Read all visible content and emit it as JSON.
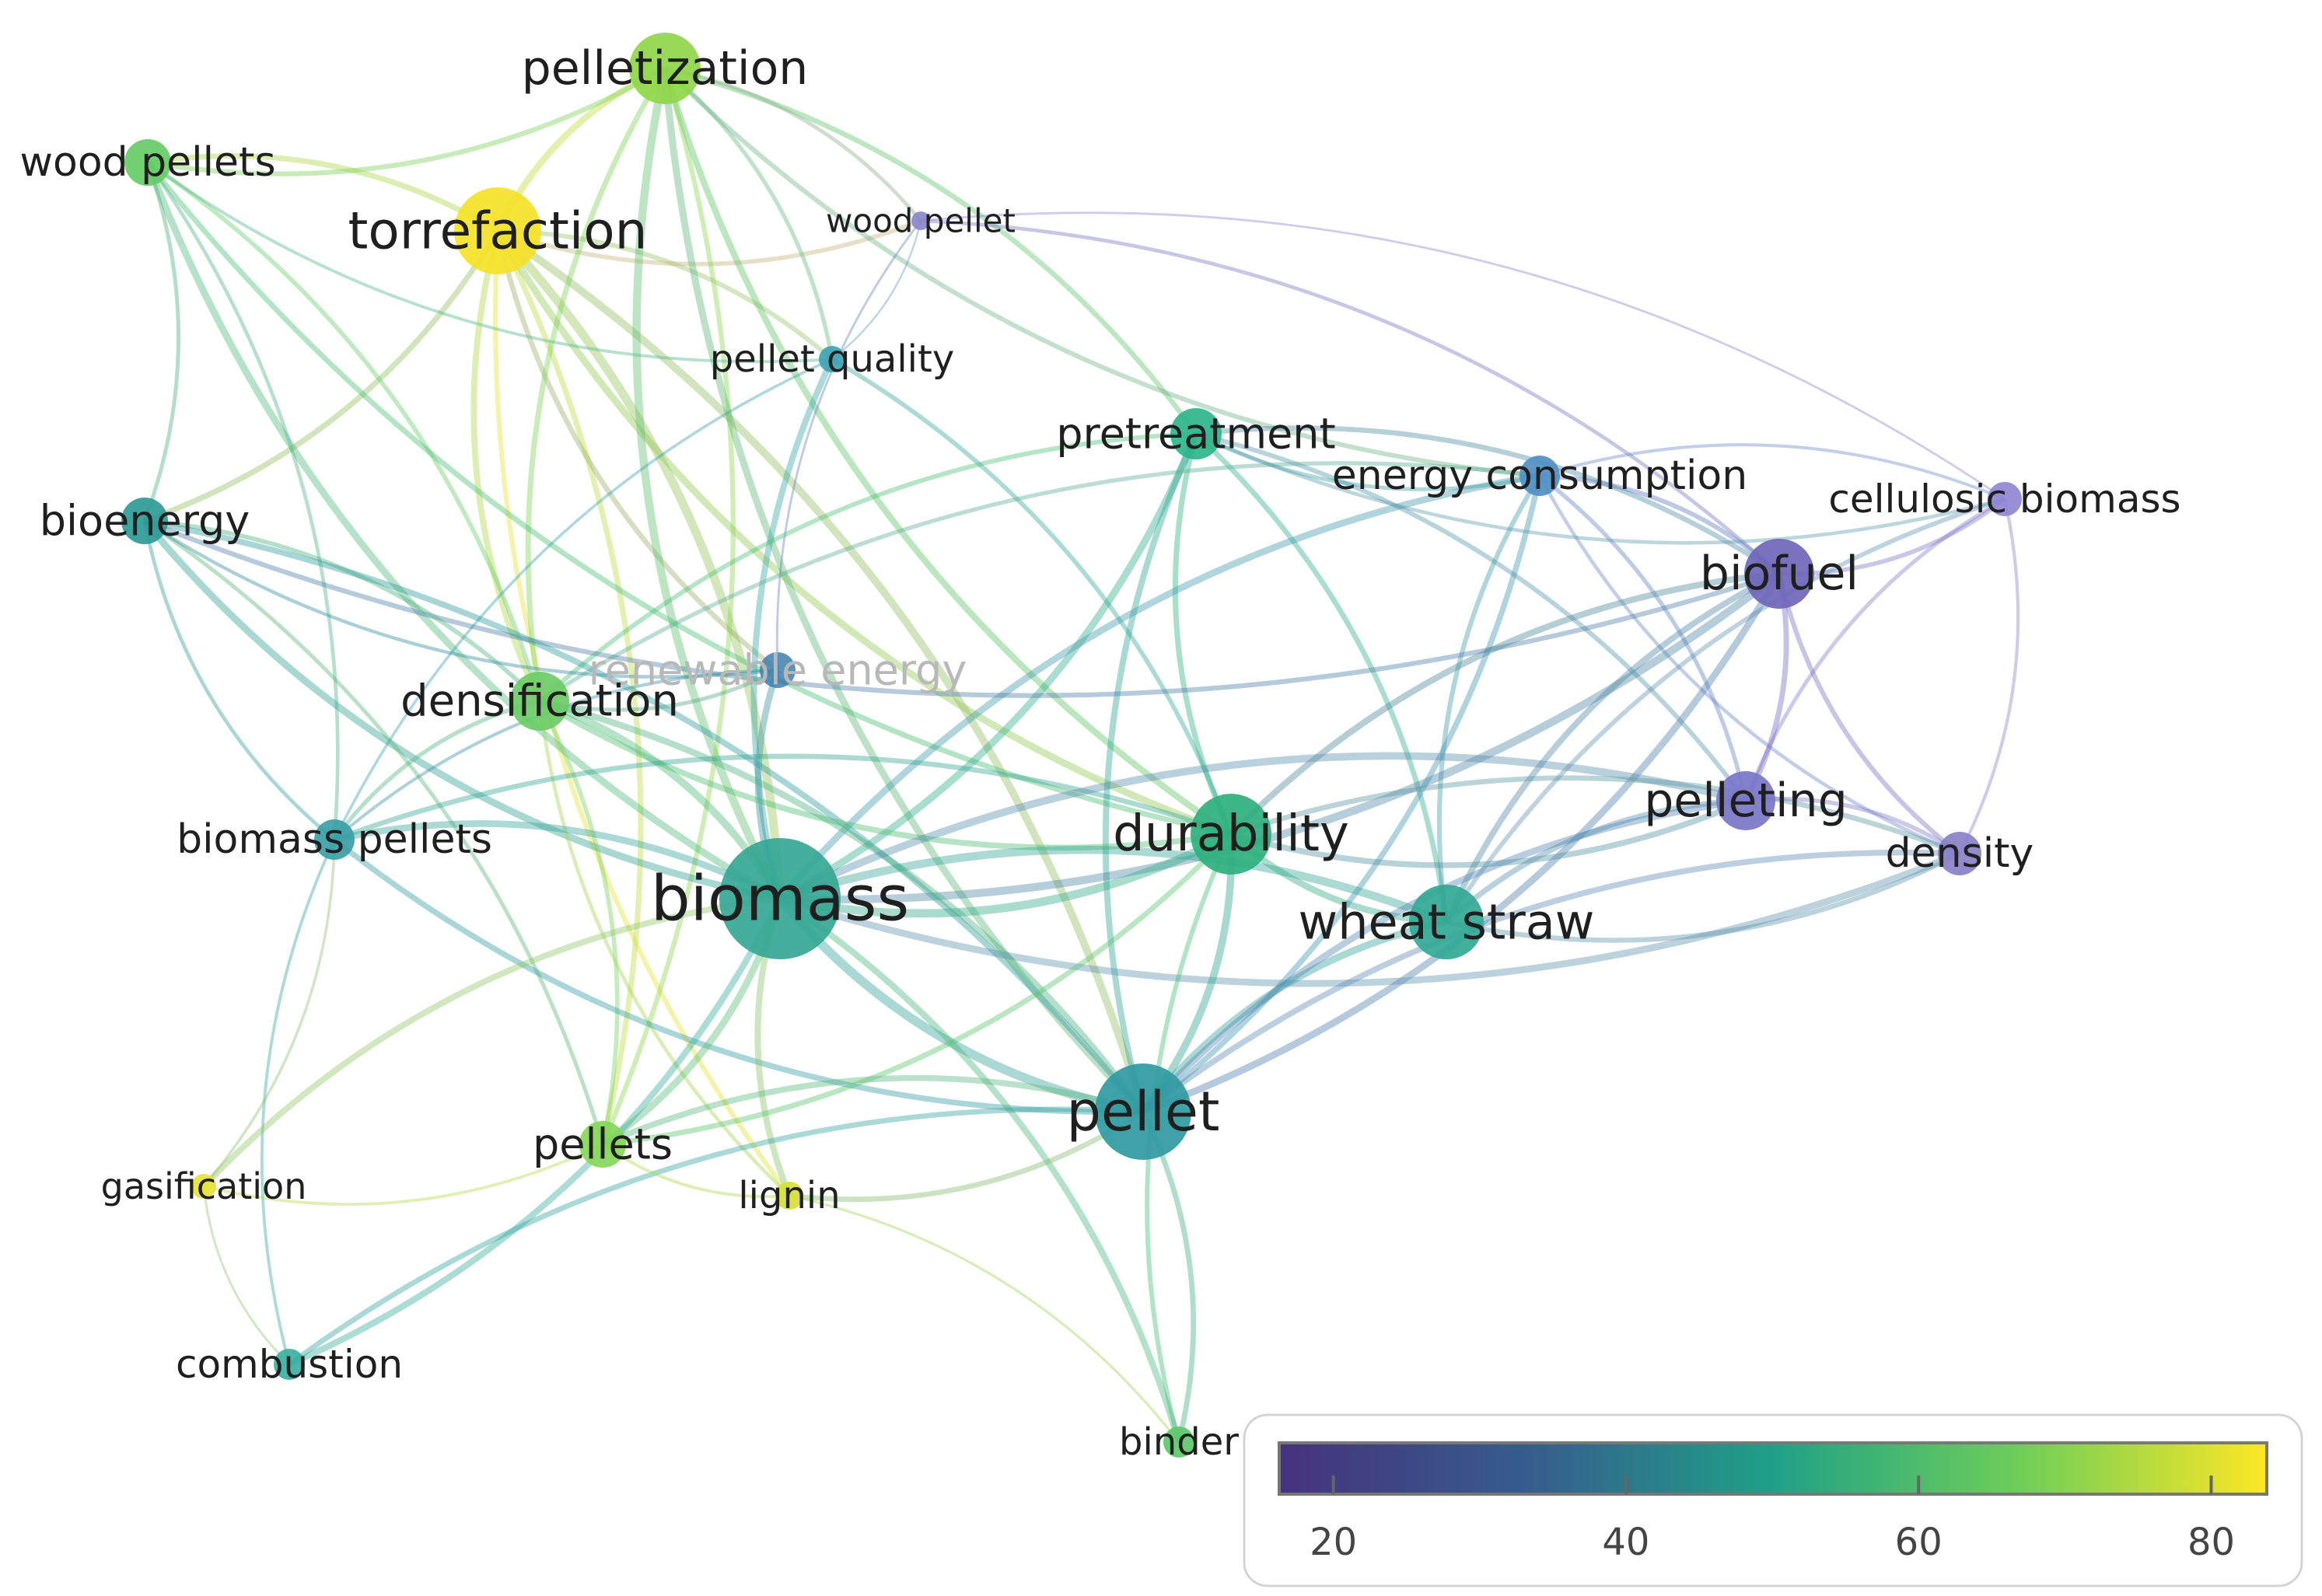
{
  "nodes": [
    {
      "id": "torrefaction",
      "label": "torrefaction",
      "color": "#f5e228",
      "faded": false
    },
    {
      "id": "pelletization",
      "label": "pelletization",
      "color": "#8fd64a",
      "faded": false
    },
    {
      "id": "wood-pellets",
      "label": "wood pellets",
      "color": "#66cc66",
      "faded": false
    },
    {
      "id": "wood-pellet",
      "label": "wood pellet",
      "color": "#8b86cc",
      "faded": false
    },
    {
      "id": "pellet-quality",
      "label": "pellet quality",
      "color": "#3ea3b3",
      "faded": false
    },
    {
      "id": "pretreatment",
      "label": "pretreatment",
      "color": "#2eb58a",
      "faded": false
    },
    {
      "id": "energy-consumption",
      "label": "energy consumption",
      "color": "#4f8fc4",
      "faded": false
    },
    {
      "id": "cellulosic-biomass",
      "label": "cellulosic biomass",
      "color": "#8f86d2",
      "faded": false
    },
    {
      "id": "biofuel",
      "label": "biofuel",
      "color": "#6f66b8",
      "faded": false
    },
    {
      "id": "bioenergy",
      "label": "bioenergy",
      "color": "#2e9a96",
      "faded": false
    },
    {
      "id": "renewable-energy",
      "label": "renewable energy",
      "color": "#3f7fae",
      "faded": true
    },
    {
      "id": "densification",
      "label": "densification",
      "color": "#6ccc66",
      "faded": false
    },
    {
      "id": "biomass-pellets",
      "label": "biomass pellets",
      "color": "#3aa0a6",
      "faded": false
    },
    {
      "id": "biomass",
      "label": "biomass",
      "color": "#35a794",
      "faded": false
    },
    {
      "id": "durability",
      "label": "durability",
      "color": "#2eb07e",
      "faded": false
    },
    {
      "id": "wheat-straw",
      "label": "wheat straw",
      "color": "#33a895",
      "faded": false
    },
    {
      "id": "pelleting",
      "label": "pelleting",
      "color": "#7a76c8",
      "faded": false
    },
    {
      "id": "density",
      "label": "density",
      "color": "#8a80c8",
      "faded": false
    },
    {
      "id": "pellet",
      "label": "pellet",
      "color": "#309aa2",
      "faded": false
    },
    {
      "id": "pellets",
      "label": "pellets",
      "color": "#86d65a",
      "faded": false
    },
    {
      "id": "lignin",
      "label": "lignin",
      "color": "#d8e03a",
      "faded": false
    },
    {
      "id": "gasification",
      "label": "gasification",
      "color": "#e6e23a",
      "faded": false
    },
    {
      "id": "combustion",
      "label": "combustion",
      "color": "#3ab0a0",
      "faded": false
    },
    {
      "id": "binder",
      "label": "binder",
      "color": "#5cc86a",
      "faded": false
    }
  ],
  "edges": [
    [
      "torrefaction",
      "pelletization"
    ],
    [
      "torrefaction",
      "wood-pellets"
    ],
    [
      "torrefaction",
      "biomass"
    ],
    [
      "torrefaction",
      "densification"
    ],
    [
      "torrefaction",
      "pellet"
    ],
    [
      "torrefaction",
      "lignin"
    ],
    [
      "torrefaction",
      "pellets"
    ],
    [
      "torrefaction",
      "durability"
    ],
    [
      "torrefaction",
      "pellet-quality"
    ],
    [
      "torrefaction",
      "renewable-energy"
    ],
    [
      "torrefaction",
      "bioenergy"
    ],
    [
      "torrefaction",
      "wood-pellet"
    ],
    [
      "pelletization",
      "wood-pellets"
    ],
    [
      "pelletization",
      "biomass"
    ],
    [
      "pelletization",
      "pellet-quality"
    ],
    [
      "pelletization",
      "durability"
    ],
    [
      "pelletization",
      "pretreatment"
    ],
    [
      "pelletization",
      "densification"
    ],
    [
      "pelletization",
      "wood-pellet"
    ],
    [
      "pelletization",
      "energy-consumption"
    ],
    [
      "pelletization",
      "pellets"
    ],
    [
      "pelletization",
      "pellet"
    ],
    [
      "wood-pellets",
      "bioenergy"
    ],
    [
      "wood-pellets",
      "biomass"
    ],
    [
      "wood-pellets",
      "densification"
    ],
    [
      "wood-pellets",
      "pellet-quality"
    ],
    [
      "wood-pellets",
      "biomass-pellets"
    ],
    [
      "wood-pellets",
      "durability"
    ],
    [
      "wood-pellet",
      "pellet-quality"
    ],
    [
      "wood-pellet",
      "renewable-energy"
    ],
    [
      "wood-pellet",
      "biofuel"
    ],
    [
      "pellet-quality",
      "biomass"
    ],
    [
      "pellet-quality",
      "durability"
    ],
    [
      "pellet-quality",
      "biomass-pellets"
    ],
    [
      "pretreatment",
      "biomass"
    ],
    [
      "pretreatment",
      "densification"
    ],
    [
      "pretreatment",
      "wheat-straw"
    ],
    [
      "pretreatment",
      "durability"
    ],
    [
      "pretreatment",
      "biofuel"
    ],
    [
      "pretreatment",
      "pellet"
    ],
    [
      "pretreatment",
      "pelleting"
    ],
    [
      "pretreatment",
      "energy-consumption"
    ],
    [
      "energy-consumption",
      "biofuel"
    ],
    [
      "energy-consumption",
      "wheat-straw"
    ],
    [
      "energy-consumption",
      "pelleting"
    ],
    [
      "energy-consumption",
      "biomass"
    ],
    [
      "energy-consumption",
      "pellet"
    ],
    [
      "energy-consumption",
      "density"
    ],
    [
      "energy-consumption",
      "cellulosic-biomass"
    ],
    [
      "energy-consumption",
      "densification"
    ],
    [
      "cellulosic-biomass",
      "biofuel"
    ],
    [
      "cellulosic-biomass",
      "pelleting"
    ],
    [
      "cellulosic-biomass",
      "density"
    ],
    [
      "cellulosic-biomass",
      "wheat-straw"
    ],
    [
      "cellulosic-biomass",
      "pretreatment"
    ],
    [
      "cellulosic-biomass",
      "wood-pellet"
    ],
    [
      "biofuel",
      "pelleting"
    ],
    [
      "biofuel",
      "wheat-straw"
    ],
    [
      "biofuel",
      "biomass"
    ],
    [
      "biofuel",
      "density"
    ],
    [
      "biofuel",
      "pellet"
    ],
    [
      "biofuel",
      "durability"
    ],
    [
      "biofuel",
      "bioenergy"
    ],
    [
      "bioenergy",
      "biomass"
    ],
    [
      "bioenergy",
      "densification"
    ],
    [
      "bioenergy",
      "biomass-pellets"
    ],
    [
      "bioenergy",
      "pellets"
    ],
    [
      "bioenergy",
      "renewable-energy"
    ],
    [
      "bioenergy",
      "pellet"
    ],
    [
      "renewable-energy",
      "biomass"
    ],
    [
      "renewable-energy",
      "densification"
    ],
    [
      "renewable-energy",
      "biomass-pellets"
    ],
    [
      "densification",
      "biomass"
    ],
    [
      "densification",
      "biomass-pellets"
    ],
    [
      "densification",
      "pellets"
    ],
    [
      "densification",
      "durability"
    ],
    [
      "densification",
      "pellet"
    ],
    [
      "densification",
      "lignin"
    ],
    [
      "biomass-pellets",
      "biomass"
    ],
    [
      "biomass-pellets",
      "combustion"
    ],
    [
      "biomass-pellets",
      "gasification"
    ],
    [
      "biomass-pellets",
      "pellet"
    ],
    [
      "biomass-pellets",
      "durability"
    ],
    [
      "biomass",
      "durability"
    ],
    [
      "biomass",
      "wheat-straw"
    ],
    [
      "biomass",
      "pellet"
    ],
    [
      "biomass",
      "pelleting"
    ],
    [
      "biomass",
      "density"
    ],
    [
      "biomass",
      "pellets"
    ],
    [
      "biomass",
      "lignin"
    ],
    [
      "biomass",
      "combustion"
    ],
    [
      "biomass",
      "gasification"
    ],
    [
      "biomass",
      "binder"
    ],
    [
      "durability",
      "wheat-straw"
    ],
    [
      "durability",
      "pellet"
    ],
    [
      "durability",
      "pelleting"
    ],
    [
      "durability",
      "density"
    ],
    [
      "durability",
      "binder"
    ],
    [
      "durability",
      "pellets"
    ],
    [
      "wheat-straw",
      "pellet"
    ],
    [
      "wheat-straw",
      "pelleting"
    ],
    [
      "wheat-straw",
      "density"
    ],
    [
      "pelleting",
      "density"
    ],
    [
      "pelleting",
      "pellet"
    ],
    [
      "pellet",
      "binder"
    ],
    [
      "pellet",
      "pellets"
    ],
    [
      "pellet",
      "lignin"
    ],
    [
      "pellet",
      "combustion"
    ],
    [
      "pellet",
      "density"
    ],
    [
      "pellets",
      "lignin"
    ],
    [
      "pellets",
      "gasification"
    ],
    [
      "gasification",
      "combustion"
    ],
    [
      "lignin",
      "binder"
    ]
  ],
  "legend": {
    "ticks": [
      "20",
      "40",
      "60",
      "80"
    ],
    "colors": [
      "#440154",
      "#3b528b",
      "#21918c",
      "#5ec962",
      "#fde725"
    ]
  }
}
